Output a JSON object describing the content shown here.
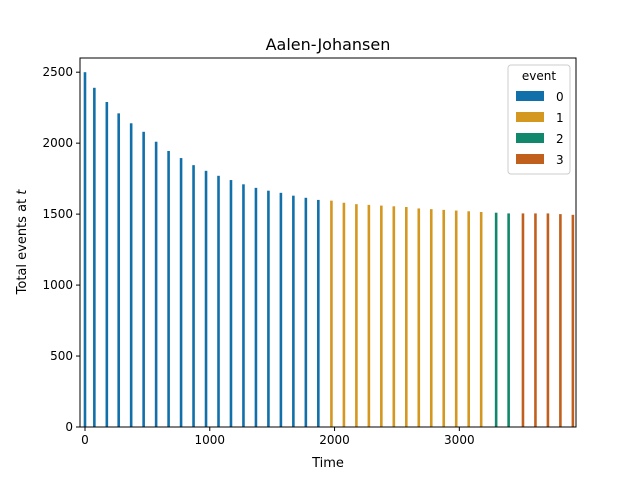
{
  "chart_data": {
    "type": "bar",
    "title": "Aalen-Johansen",
    "xlabel": "Time",
    "ylabel_prefix": "Total events at ",
    "ylabel_var": "t",
    "xlim": [
      -40,
      3935
    ],
    "ylim": [
      0,
      2600
    ],
    "xticks": [
      0,
      1000,
      2000,
      3000
    ],
    "yticks": [
      0,
      500,
      1000,
      1500,
      2000,
      2500
    ],
    "legend": {
      "title": "event",
      "placement": "top-right",
      "entries": [
        "0",
        "1",
        "2",
        "3"
      ]
    },
    "colors": {
      "0": "#1170aa",
      "1": "#d4971f",
      "2": "#11876b",
      "3": "#c1601d"
    },
    "series": [
      {
        "name": "0",
        "x": [
          0,
          75,
          175,
          270,
          370,
          470,
          570,
          670,
          770,
          870,
          970,
          1070,
          1170,
          1270,
          1370,
          1470,
          1570,
          1670,
          1770,
          1870
        ],
        "values": [
          2500,
          2390,
          2290,
          2210,
          2140,
          2080,
          2010,
          1945,
          1895,
          1845,
          1805,
          1770,
          1740,
          1710,
          1685,
          1665,
          1650,
          1630,
          1615,
          1600
        ]
      },
      {
        "name": "1",
        "x": [
          1975,
          2075,
          2175,
          2275,
          2375,
          2475,
          2575,
          2675,
          2775,
          2875,
          2975,
          3075,
          3175
        ],
        "values": [
          1595,
          1580,
          1570,
          1565,
          1560,
          1555,
          1550,
          1540,
          1535,
          1530,
          1525,
          1520,
          1515
        ]
      },
      {
        "name": "2",
        "x": [
          3295,
          3395
        ],
        "values": [
          1510,
          1505
        ]
      },
      {
        "name": "3",
        "x": [
          3510,
          3610,
          3710,
          3810,
          3910
        ],
        "values": [
          1505,
          1505,
          1505,
          1500,
          1495
        ]
      }
    ]
  }
}
